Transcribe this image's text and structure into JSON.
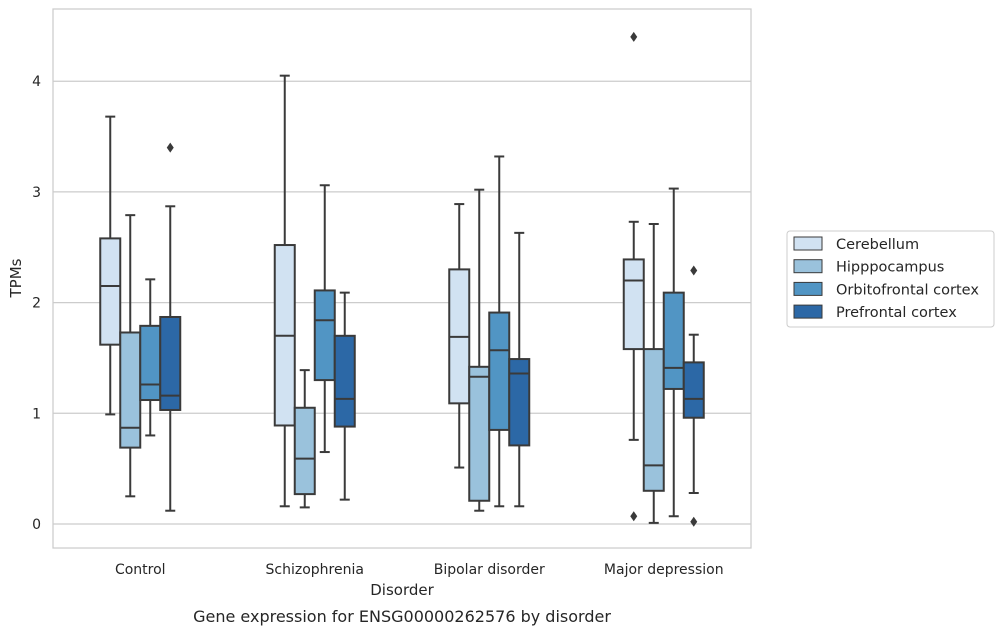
{
  "chart_data": {
    "type": "box",
    "xlabel": "Disorder",
    "ylabel": "TPMs",
    "caption": "Gene expression for ENSG00000262576 by disorder",
    "ylim": [
      -0.2,
      4.63
    ],
    "yticks": [
      "0",
      "1",
      "2",
      "3",
      "4"
    ],
    "grid": "horizontal",
    "legend_position": "right",
    "categories": [
      "Control",
      "Schizophrenia",
      "Bipolar disorder",
      "Major depression"
    ],
    "series": [
      {
        "name": "Cerebellum",
        "color": "#d1e2f2",
        "boxes": [
          {
            "whislo": 0.99,
            "q1": 1.62,
            "med": 2.15,
            "q3": 2.58,
            "whishi": 3.68,
            "fliers": []
          },
          {
            "whislo": 0.16,
            "q1": 0.89,
            "med": 1.7,
            "q3": 2.52,
            "whishi": 4.05,
            "fliers": []
          },
          {
            "whislo": 0.51,
            "q1": 1.09,
            "med": 1.69,
            "q3": 2.3,
            "whishi": 2.89,
            "fliers": []
          },
          {
            "whislo": 0.76,
            "q1": 1.58,
            "med": 2.2,
            "q3": 2.39,
            "whishi": 2.73,
            "fliers": [
              0.07,
              4.4
            ]
          }
        ]
      },
      {
        "name": "Hipppocampus",
        "color": "#9ac2dc",
        "boxes": [
          {
            "whislo": 0.25,
            "q1": 0.69,
            "med": 0.87,
            "q3": 1.73,
            "whishi": 2.79,
            "fliers": []
          },
          {
            "whislo": 0.15,
            "q1": 0.27,
            "med": 0.59,
            "q3": 1.05,
            "whishi": 1.39,
            "fliers": []
          },
          {
            "whislo": 0.12,
            "q1": 0.21,
            "med": 1.33,
            "q3": 1.42,
            "whishi": 3.02,
            "fliers": []
          },
          {
            "whislo": 0.01,
            "q1": 0.3,
            "med": 0.53,
            "q3": 1.58,
            "whishi": 2.71,
            "fliers": []
          }
        ]
      },
      {
        "name": "Orbitofrontal cortex",
        "color": "#5195c4",
        "boxes": [
          {
            "whislo": 0.8,
            "q1": 1.12,
            "med": 1.26,
            "q3": 1.79,
            "whishi": 2.21,
            "fliers": []
          },
          {
            "whislo": 0.65,
            "q1": 1.3,
            "med": 1.84,
            "q3": 2.11,
            "whishi": 3.06,
            "fliers": []
          },
          {
            "whislo": 0.16,
            "q1": 0.85,
            "med": 1.57,
            "q3": 1.91,
            "whishi": 3.32,
            "fliers": []
          },
          {
            "whislo": 0.07,
            "q1": 1.22,
            "med": 1.41,
            "q3": 2.09,
            "whishi": 3.03,
            "fliers": []
          }
        ]
      },
      {
        "name": "Prefrontal cortex",
        "color": "#2c68a6",
        "boxes": [
          {
            "whislo": 0.12,
            "q1": 1.03,
            "med": 1.16,
            "q3": 1.87,
            "whishi": 2.87,
            "fliers": [
              3.4
            ]
          },
          {
            "whislo": 0.22,
            "q1": 0.88,
            "med": 1.13,
            "q3": 1.7,
            "whishi": 2.09,
            "fliers": []
          },
          {
            "whislo": 0.16,
            "q1": 0.71,
            "med": 1.36,
            "q3": 1.49,
            "whishi": 2.63,
            "fliers": []
          },
          {
            "whislo": 0.28,
            "q1": 0.96,
            "med": 1.13,
            "q3": 1.46,
            "whishi": 1.71,
            "fliers": [
              0.02,
              2.29
            ]
          }
        ]
      }
    ]
  }
}
